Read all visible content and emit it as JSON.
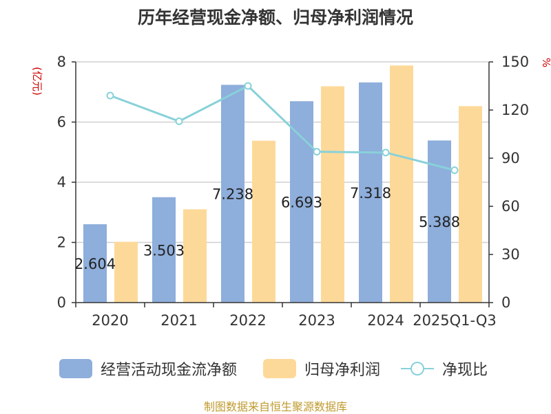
{
  "title": "历年经营现金净额、归母净利润情况",
  "source": "制图数据来自恒生聚源数据库",
  "colors": {
    "cash": "#8eaedb",
    "profit": "#fdd999",
    "ratio": "#88d1d9",
    "unit_red": "#cc0000",
    "source": "#c09a2f"
  },
  "chart_data": {
    "type": "bar",
    "categories": [
      "2020",
      "2021",
      "2022",
      "2023",
      "2024",
      "2025Q1-Q3"
    ],
    "left_axis": {
      "unit": "(亿元)",
      "ylim": [
        0,
        8
      ],
      "ticks": [
        0,
        2,
        4,
        6,
        8
      ]
    },
    "right_axis": {
      "unit": "%",
      "ylim": [
        0,
        150
      ],
      "ticks": [
        0,
        30,
        60,
        90,
        120,
        150
      ]
    },
    "series": [
      {
        "name": "经营活动现金流净额",
        "type": "bar",
        "axis": "left",
        "values": [
          2.604,
          3.503,
          7.238,
          6.693,
          7.318,
          5.388
        ],
        "labels": [
          "2.604",
          "3.503",
          "7.238",
          "6.693",
          "7.318",
          "5.388"
        ]
      },
      {
        "name": "归母净利润",
        "type": "bar",
        "axis": "left",
        "values": [
          2.02,
          3.1,
          5.38,
          7.19,
          7.88,
          6.53
        ]
      },
      {
        "name": "净现比",
        "type": "line",
        "axis": "right",
        "values": [
          129,
          113,
          135,
          94,
          93.5,
          82.5
        ]
      }
    ],
    "grid": true,
    "legend_position": "bottom"
  }
}
